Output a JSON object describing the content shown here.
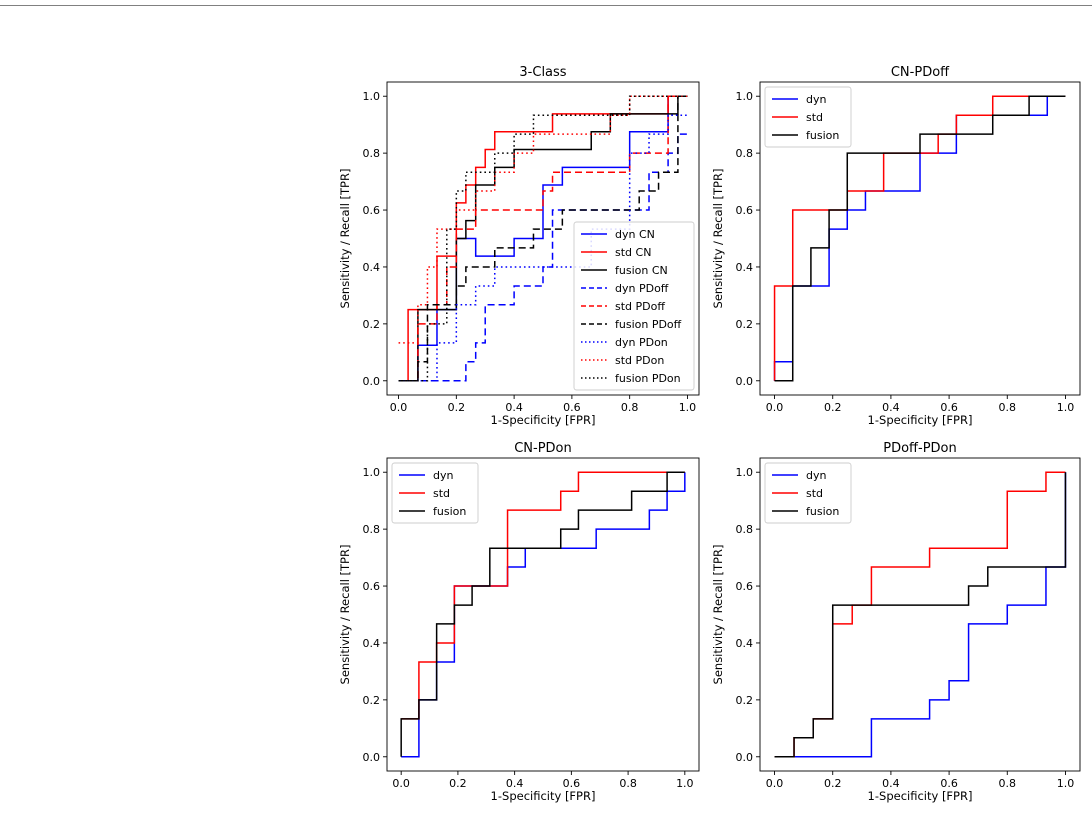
{
  "colors": {
    "dyn": "#0000ff",
    "std": "#ff0000",
    "fusion": "#000000"
  },
  "chart_data": [
    {
      "type": "line",
      "title": "3-Class",
      "xlabel": "1-Specificity [FPR]",
      "ylabel": "Sensitivity / Recall [TPR]",
      "xlim": [
        -0.04,
        1.04
      ],
      "ylim": [
        -0.05,
        1.05
      ],
      "xticks": [
        "0.0",
        "0.2",
        "0.4",
        "0.6",
        "0.8",
        "1.0"
      ],
      "yticks": [
        "0.0",
        "0.2",
        "0.4",
        "0.6",
        "0.8",
        "1.0"
      ],
      "legend_loc": "lower-right",
      "series": [
        {
          "name": "dyn CN",
          "color": "#0000ff",
          "dash": "solid",
          "x": [
            0,
            0.067,
            0.067,
            0.133,
            0.133,
            0.2,
            0.2,
            0.267,
            0.267,
            0.4,
            0.4,
            0.5,
            0.5,
            0.567,
            0.567,
            0.8,
            0.8,
            0.933,
            0.933,
            1
          ],
          "y": [
            0,
            0,
            0.125,
            0.125,
            0.25,
            0.25,
            0.5,
            0.5,
            0.438,
            0.438,
            0.5,
            0.5,
            0.688,
            0.688,
            0.75,
            0.75,
            0.875,
            0.875,
            1,
            1
          ]
        },
        {
          "name": "std CN",
          "color": "#ff0000",
          "dash": "solid",
          "x": [
            0,
            0.033,
            0.033,
            0.133,
            0.133,
            0.2,
            0.2,
            0.233,
            0.233,
            0.267,
            0.267,
            0.3,
            0.3,
            0.333,
            0.333,
            0.367,
            0.367,
            0.533,
            0.533,
            0.7,
            0.7,
            0.933,
            0.933,
            1
          ],
          "y": [
            0,
            0,
            0.25,
            0.25,
            0.438,
            0.438,
            0.625,
            0.625,
            0.688,
            0.688,
            0.75,
            0.75,
            0.813,
            0.813,
            0.875,
            0.875,
            0.875,
            0.875,
            0.938,
            0.938,
            0.938,
            0.938,
            1,
            1
          ]
        },
        {
          "name": "fusion CN",
          "color": "#000000",
          "dash": "solid",
          "x": [
            0,
            0.067,
            0.067,
            0.2,
            0.2,
            0.233,
            0.233,
            0.267,
            0.267,
            0.333,
            0.333,
            0.4,
            0.4,
            0.567,
            0.567,
            0.667,
            0.667,
            0.733,
            0.733,
            0.9,
            0.9,
            0.967,
            0.967,
            1
          ],
          "y": [
            0,
            0,
            0.25,
            0.25,
            0.5,
            0.5,
            0.563,
            0.563,
            0.688,
            0.688,
            0.75,
            0.75,
            0.813,
            0.813,
            0.813,
            0.813,
            0.875,
            0.875,
            0.938,
            0.938,
            0.938,
            0.938,
            1,
            1
          ]
        },
        {
          "name": "dyn PDoff",
          "color": "#0000ff",
          "dash": "dashed",
          "x": [
            0,
            0.133,
            0.133,
            0.233,
            0.233,
            0.267,
            0.267,
            0.3,
            0.3,
            0.4,
            0.4,
            0.5,
            0.5,
            0.533,
            0.533,
            0.8,
            0.8,
            0.867,
            0.867,
            0.933,
            0.933,
            0.967,
            0.967,
            1
          ],
          "y": [
            0,
            0,
            0,
            0,
            0.067,
            0.067,
            0.133,
            0.133,
            0.267,
            0.267,
            0.333,
            0.333,
            0.4,
            0.4,
            0.6,
            0.6,
            0.6,
            0.6,
            0.733,
            0.733,
            0.8,
            0.8,
            0.867,
            0.867
          ]
        },
        {
          "name": "std PDoff",
          "color": "#ff0000",
          "dash": "dashed",
          "x": [
            0,
            0.067,
            0.067,
            0.133,
            0.133,
            0.167,
            0.167,
            0.2,
            0.2,
            0.267,
            0.267,
            0.5,
            0.5,
            0.533,
            0.533,
            0.8,
            0.8,
            0.933,
            0.933,
            1
          ],
          "y": [
            0,
            0,
            0.2,
            0.2,
            0.267,
            0.267,
            0.4,
            0.4,
            0.533,
            0.533,
            0.6,
            0.6,
            0.667,
            0.667,
            0.733,
            0.733,
            0.8,
            0.8,
            1,
            1
          ]
        },
        {
          "name": "fusion PDoff",
          "color": "#000000",
          "dash": "dashed",
          "x": [
            0,
            0.067,
            0.067,
            0.1,
            0.1,
            0.2,
            0.2,
            0.233,
            0.233,
            0.333,
            0.333,
            0.467,
            0.467,
            0.567,
            0.567,
            0.833,
            0.833,
            0.9,
            0.9,
            0.967,
            0.967,
            1
          ],
          "y": [
            0,
            0,
            0.067,
            0.067,
            0.267,
            0.267,
            0.333,
            0.333,
            0.4,
            0.4,
            0.467,
            0.467,
            0.533,
            0.533,
            0.6,
            0.6,
            0.667,
            0.667,
            0.733,
            0.733,
            1,
            1
          ]
        },
        {
          "name": "dyn PDon",
          "color": "#0000ff",
          "dash": "dotted",
          "x": [
            0,
            0.133,
            0.133,
            0.2,
            0.2,
            0.267,
            0.267,
            0.333,
            0.333,
            0.433,
            0.433,
            0.667,
            0.667,
            0.8,
            0.8,
            0.867,
            0.867,
            0.933,
            0.933,
            1
          ],
          "y": [
            0,
            0,
            0.133,
            0.133,
            0.267,
            0.267,
            0.333,
            0.333,
            0.4,
            0.4,
            0.4,
            0.4,
            0.533,
            0.533,
            0.8,
            0.8,
            0.867,
            0.867,
            0.933,
            0.933
          ]
        },
        {
          "name": "std PDon",
          "color": "#ff0000",
          "dash": "dotted",
          "x": [
            0,
            0.067,
            0.067,
            0.1,
            0.1,
            0.133,
            0.133,
            0.2,
            0.2,
            0.267,
            0.267,
            0.333,
            0.333,
            0.4,
            0.4,
            0.467,
            0.467,
            0.733,
            0.733,
            0.8,
            0.8,
            1
          ],
          "y": [
            0.133,
            0.133,
            0.267,
            0.267,
            0.4,
            0.4,
            0.533,
            0.533,
            0.6,
            0.6,
            0.667,
            0.667,
            0.733,
            0.733,
            0.8,
            0.8,
            0.867,
            0.867,
            0.933,
            0.933,
            1,
            1
          ]
        },
        {
          "name": "fusion PDon",
          "color": "#000000",
          "dash": "dotted",
          "x": [
            0,
            0.1,
            0.1,
            0.167,
            0.167,
            0.2,
            0.2,
            0.233,
            0.233,
            0.267,
            0.267,
            0.333,
            0.333,
            0.4,
            0.4,
            0.467,
            0.467,
            0.7,
            0.7,
            0.8,
            0.8,
            0.9,
            0.9,
            1
          ],
          "y": [
            0,
            0,
            0.2,
            0.2,
            0.533,
            0.533,
            0.667,
            0.667,
            0.733,
            0.733,
            0.733,
            0.733,
            0.8,
            0.8,
            0.867,
            0.867,
            0.933,
            0.933,
            0.933,
            0.933,
            1,
            1,
            1,
            1
          ]
        }
      ]
    },
    {
      "type": "line",
      "title": "CN-PDoff",
      "xlabel": "1-Specificity [FPR]",
      "ylabel": "Sensitivity / Recall [TPR]",
      "xlim": [
        -0.05,
        1.05
      ],
      "ylim": [
        -0.05,
        1.05
      ],
      "xticks": [
        "0.0",
        "0.2",
        "0.4",
        "0.6",
        "0.8",
        "1.0"
      ],
      "yticks": [
        "0.0",
        "0.2",
        "0.4",
        "0.6",
        "0.8",
        "1.0"
      ],
      "legend_loc": "top-left",
      "series": [
        {
          "name": "dyn",
          "color": "#0000ff",
          "dash": "solid",
          "x": [
            0,
            0,
            0.0625,
            0.0625,
            0.1875,
            0.1875,
            0.25,
            0.25,
            0.3125,
            0.3125,
            0.5,
            0.5,
            0.625,
            0.625,
            0.75,
            0.75,
            0.9375,
            0.9375,
            1
          ],
          "y": [
            0,
            0.067,
            0.067,
            0.333,
            0.333,
            0.533,
            0.533,
            0.6,
            0.6,
            0.667,
            0.667,
            0.8,
            0.8,
            0.933,
            0.933,
            0.933,
            0.933,
            1,
            1
          ]
        },
        {
          "name": "std",
          "color": "#ff0000",
          "dash": "solid",
          "x": [
            0,
            0,
            0.0625,
            0.0625,
            0.25,
            0.25,
            0.375,
            0.375,
            0.5,
            0.5,
            0.5625,
            0.5625,
            0.625,
            0.625,
            0.75,
            0.75,
            1
          ],
          "y": [
            0,
            0.333,
            0.333,
            0.6,
            0.6,
            0.667,
            0.667,
            0.8,
            0.8,
            0.8,
            0.8,
            0.867,
            0.867,
            0.933,
            0.933,
            1,
            1
          ]
        },
        {
          "name": "fusion",
          "color": "#000000",
          "dash": "solid",
          "x": [
            0,
            0.0625,
            0.0625,
            0.125,
            0.125,
            0.1875,
            0.1875,
            0.25,
            0.25,
            0.5,
            0.5,
            0.75,
            0.75,
            0.875,
            0.875,
            1
          ],
          "y": [
            0,
            0,
            0.333,
            0.333,
            0.467,
            0.467,
            0.6,
            0.6,
            0.8,
            0.8,
            0.867,
            0.867,
            0.933,
            0.933,
            1,
            1
          ]
        }
      ]
    },
    {
      "type": "line",
      "title": "CN-PDon",
      "xlabel": "1-Specificity [FPR]",
      "ylabel": "Sensitivity / Recall [TPR]",
      "xlim": [
        -0.05,
        1.05
      ],
      "ylim": [
        -0.05,
        1.05
      ],
      "xticks": [
        "0.0",
        "0.2",
        "0.4",
        "0.6",
        "0.8",
        "1.0"
      ],
      "yticks": [
        "0.0",
        "0.2",
        "0.4",
        "0.6",
        "0.8",
        "1.0"
      ],
      "legend_loc": "top-left",
      "series": [
        {
          "name": "dyn",
          "color": "#0000ff",
          "dash": "solid",
          "x": [
            0,
            0.0625,
            0.0625,
            0.125,
            0.125,
            0.1875,
            0.1875,
            0.375,
            0.375,
            0.4375,
            0.4375,
            0.5625,
            0.5625,
            0.6875,
            0.6875,
            0.875,
            0.875,
            0.9375,
            0.9375,
            1,
            1
          ],
          "y": [
            0,
            0,
            0.2,
            0.2,
            0.333,
            0.333,
            0.6,
            0.6,
            0.667,
            0.667,
            0.733,
            0.733,
            0.733,
            0.733,
            0.8,
            0.8,
            0.867,
            0.867,
            0.933,
            0.933,
            1
          ]
        },
        {
          "name": "std",
          "color": "#ff0000",
          "dash": "solid",
          "x": [
            0,
            0.0625,
            0.0625,
            0.125,
            0.125,
            0.1875,
            0.1875,
            0.3125,
            0.3125,
            0.375,
            0.375,
            0.5625,
            0.5625,
            0.625,
            0.625,
            1
          ],
          "y": [
            0.133,
            0.133,
            0.333,
            0.333,
            0.4,
            0.4,
            0.6,
            0.6,
            0.6,
            0.6,
            0.867,
            0.867,
            0.933,
            0.933,
            1,
            1
          ]
        },
        {
          "name": "fusion",
          "color": "#000000",
          "dash": "solid",
          "x": [
            0,
            0,
            0.0625,
            0.0625,
            0.125,
            0.125,
            0.1875,
            0.1875,
            0.25,
            0.25,
            0.3125,
            0.3125,
            0.5625,
            0.5625,
            0.625,
            0.625,
            0.8125,
            0.8125,
            0.9375,
            0.9375,
            1
          ],
          "y": [
            0,
            0.133,
            0.133,
            0.2,
            0.2,
            0.467,
            0.467,
            0.533,
            0.533,
            0.6,
            0.6,
            0.733,
            0.733,
            0.8,
            0.8,
            0.867,
            0.867,
            0.933,
            0.933,
            1,
            1
          ]
        }
      ]
    },
    {
      "type": "line",
      "title": "PDoff-PDon",
      "xlabel": "1-Specificity [FPR]",
      "ylabel": "Sensitivity / Recall [TPR]",
      "xlim": [
        -0.05,
        1.05
      ],
      "ylim": [
        -0.05,
        1.05
      ],
      "xticks": [
        "0.0",
        "0.2",
        "0.4",
        "0.6",
        "0.8",
        "1.0"
      ],
      "yticks": [
        "0.0",
        "0.2",
        "0.4",
        "0.6",
        "0.8",
        "1.0"
      ],
      "legend_loc": "top-left",
      "series": [
        {
          "name": "dyn",
          "color": "#0000ff",
          "dash": "solid",
          "x": [
            0,
            0.333,
            0.333,
            0.533,
            0.533,
            0.6,
            0.6,
            0.667,
            0.667,
            0.8,
            0.8,
            0.933,
            0.933,
            1,
            1
          ],
          "y": [
            0,
            0,
            0.133,
            0.133,
            0.2,
            0.2,
            0.267,
            0.267,
            0.467,
            0.467,
            0.533,
            0.533,
            0.667,
            0.667,
            1
          ]
        },
        {
          "name": "std",
          "color": "#ff0000",
          "dash": "solid",
          "x": [
            0,
            0.067,
            0.067,
            0.133,
            0.133,
            0.2,
            0.2,
            0.267,
            0.267,
            0.333,
            0.333,
            0.533,
            0.533,
            0.8,
            0.8,
            0.933,
            0.933,
            1
          ],
          "y": [
            0,
            0,
            0.067,
            0.067,
            0.133,
            0.133,
            0.467,
            0.467,
            0.533,
            0.533,
            0.667,
            0.667,
            0.733,
            0.733,
            0.933,
            0.933,
            1,
            1
          ]
        },
        {
          "name": "fusion",
          "color": "#000000",
          "dash": "solid",
          "x": [
            0,
            0.067,
            0.067,
            0.133,
            0.133,
            0.2,
            0.2,
            0.667,
            0.667,
            0.733,
            0.733,
            1,
            1
          ],
          "y": [
            0,
            0,
            0.067,
            0.067,
            0.133,
            0.133,
            0.533,
            0.533,
            0.6,
            0.6,
            0.667,
            0.667,
            1
          ]
        }
      ]
    }
  ]
}
